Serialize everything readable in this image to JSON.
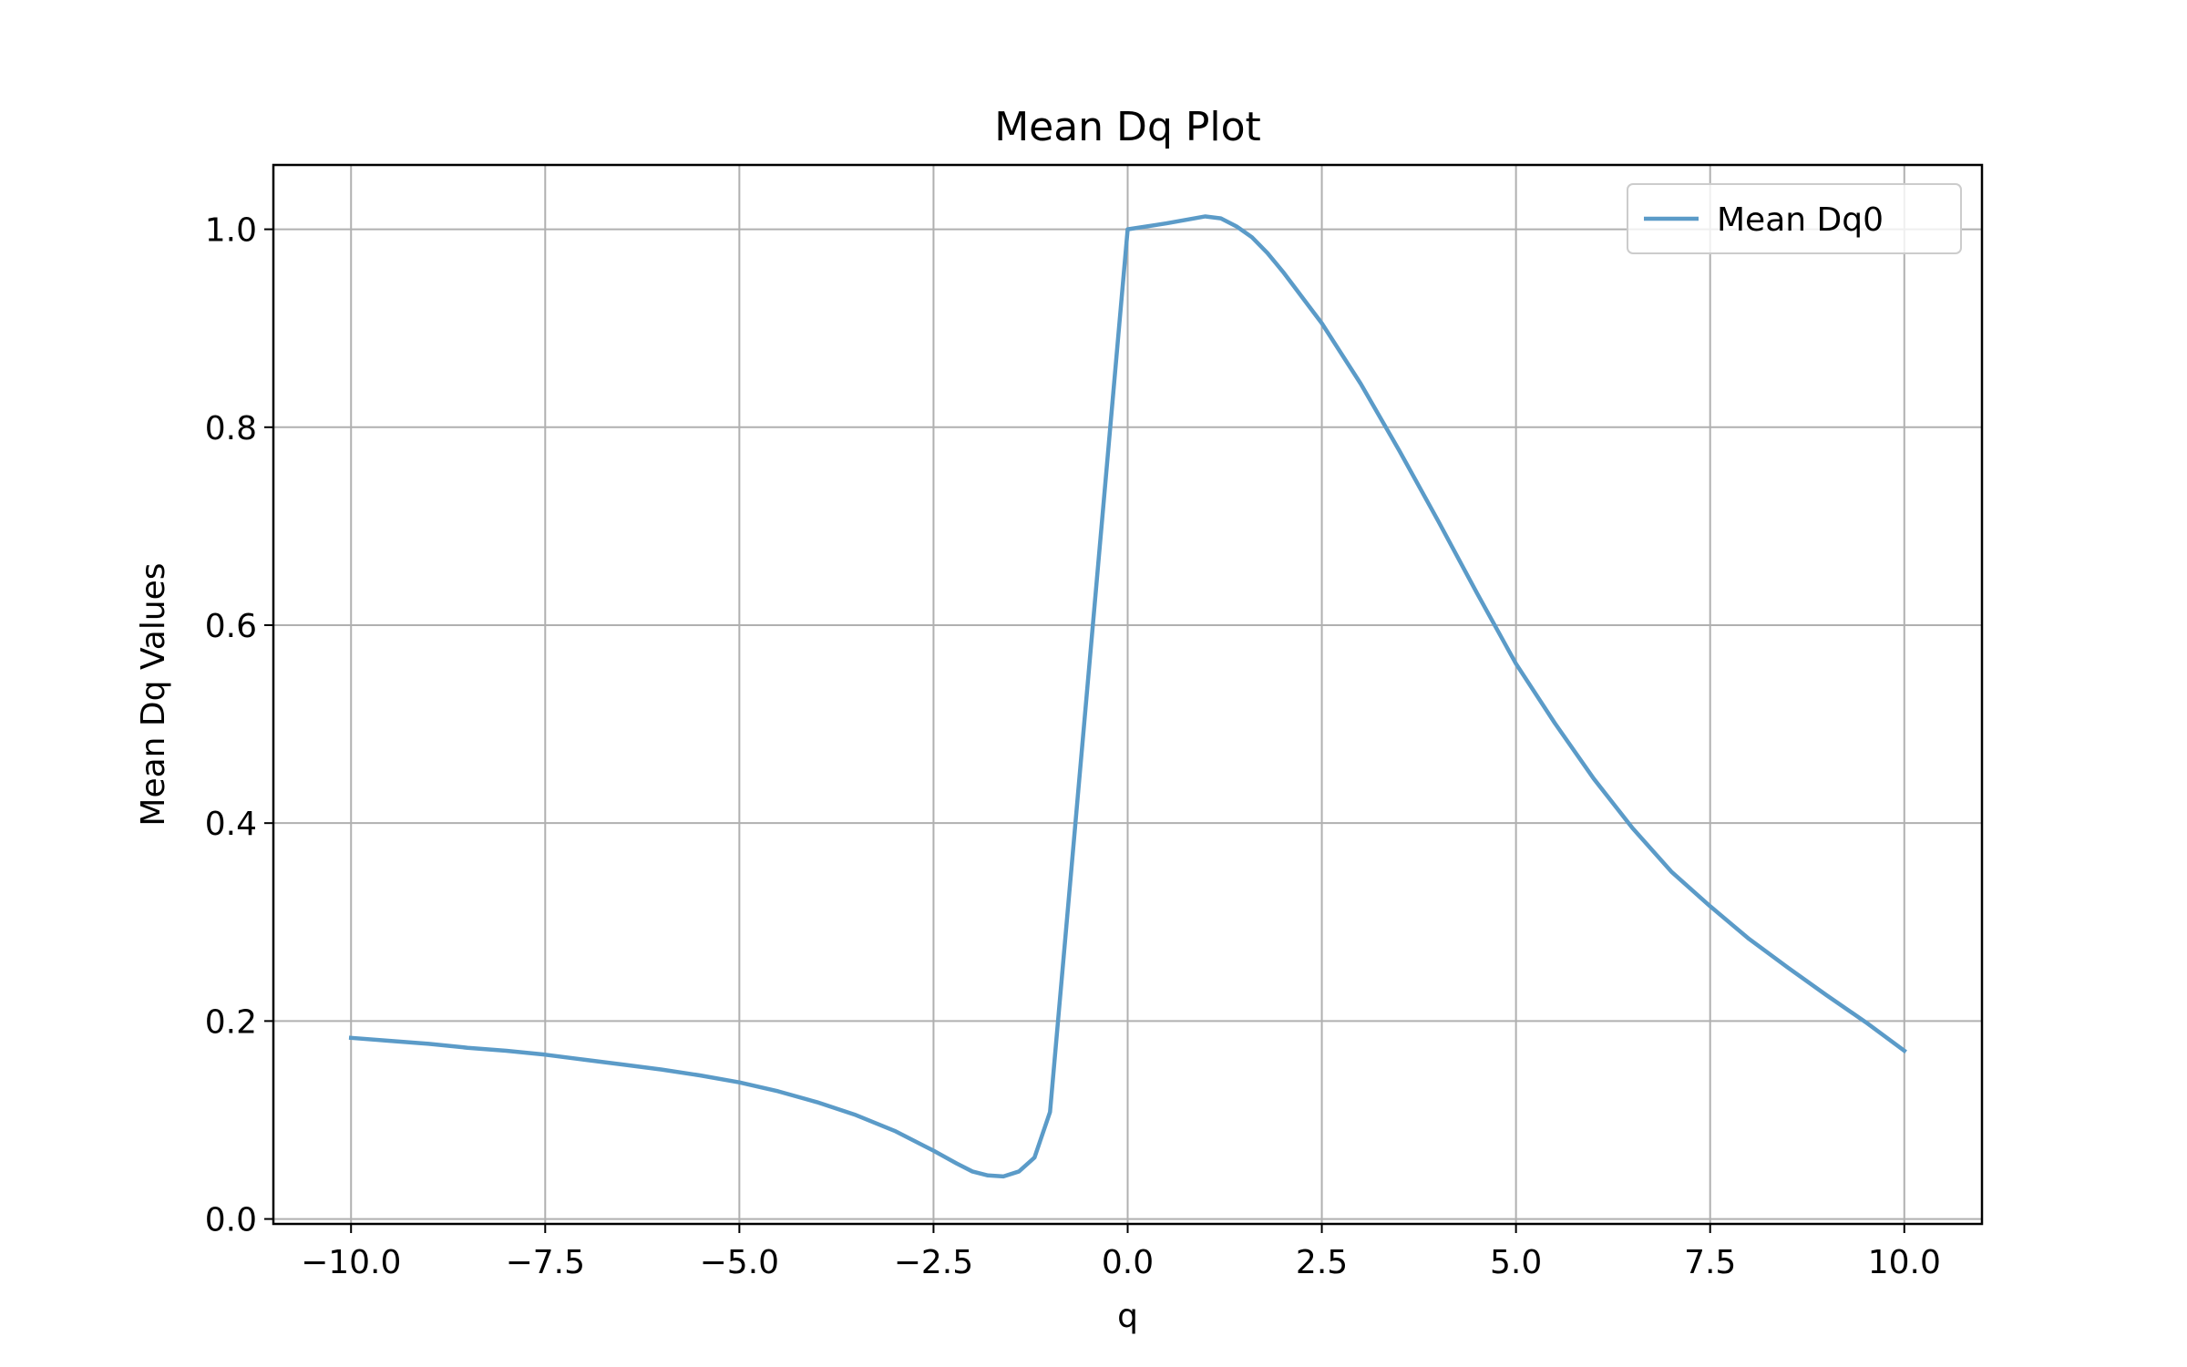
{
  "chart_data": {
    "type": "line",
    "title": "Mean Dq Plot",
    "xlabel": "q",
    "ylabel": "Mean Dq Values",
    "xlim": [
      -11.0,
      11.0
    ],
    "ylim": [
      -0.005,
      1.065
    ],
    "xticks": [
      -10.0,
      -7.5,
      -5.0,
      -2.5,
      0.0,
      2.5,
      5.0,
      7.5,
      10.0
    ],
    "xtick_labels": [
      "−10.0",
      "−7.5",
      "−5.0",
      "−2.5",
      "0.0",
      "2.5",
      "5.0",
      "7.5",
      "10.0"
    ],
    "yticks": [
      0.0,
      0.2,
      0.4,
      0.6,
      0.8,
      1.0
    ],
    "ytick_labels": [
      "0.0",
      "0.2",
      "0.4",
      "0.6",
      "0.8",
      "1.0"
    ],
    "grid": true,
    "legend": {
      "position": "top-right",
      "entries": [
        "Mean Dq0"
      ]
    },
    "colors": {
      "line": "#5b9bc8",
      "grid": "#b0b0b0",
      "axes": "#000000"
    },
    "series": [
      {
        "name": "Mean Dq0",
        "x": [
          -10.0,
          -9.5,
          -9.0,
          -8.5,
          -8.0,
          -7.5,
          -7.0,
          -6.5,
          -6.0,
          -5.5,
          -5.0,
          -4.5,
          -4.0,
          -3.5,
          -3.0,
          -2.5,
          -2.2,
          -2.0,
          -1.8,
          -1.6,
          -1.4,
          -1.2,
          -1.0,
          0.0,
          0.5,
          1.0,
          1.2,
          1.4,
          1.6,
          1.8,
          2.0,
          2.5,
          3.0,
          3.5,
          4.0,
          4.5,
          5.0,
          5.5,
          6.0,
          6.5,
          7.0,
          7.5,
          8.0,
          8.5,
          9.0,
          9.5,
          10.0
        ],
        "y": [
          0.183,
          0.18,
          0.177,
          0.173,
          0.17,
          0.166,
          0.161,
          0.156,
          0.151,
          0.145,
          0.138,
          0.129,
          0.118,
          0.105,
          0.089,
          0.069,
          0.056,
          0.048,
          0.044,
          0.043,
          0.048,
          0.062,
          0.108,
          1.0,
          1.006,
          1.013,
          1.011,
          1.003,
          0.992,
          0.976,
          0.957,
          0.905,
          0.844,
          0.776,
          0.705,
          0.632,
          0.561,
          0.501,
          0.445,
          0.395,
          0.351,
          0.316,
          0.283,
          0.254,
          0.226,
          0.199,
          0.17
        ]
      }
    ]
  }
}
